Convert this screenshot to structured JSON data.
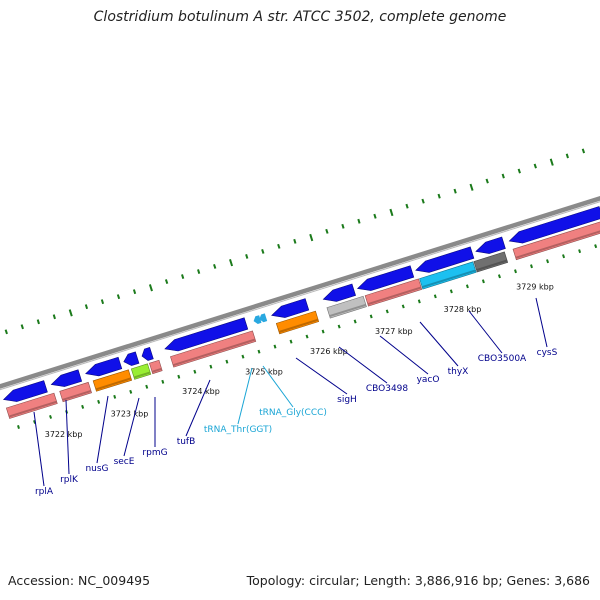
{
  "title": "Clostridium botulinum A str. ATCC 3502, complete genome",
  "footer": {
    "accession": "Accession: NC_009495",
    "stats": "Topology: circular; Length: 3,886,916 bp; Genes: 3,686"
  },
  "colors": {
    "backbone": "#8a8a8a",
    "cds_forward": "#1010e8",
    "cds_reverse_rna": "#f08080",
    "orange_gene": "#ff8c00",
    "green_gene": "#99ee33",
    "cyan_gene": "#1cc0f0",
    "trna": "#29a8e0",
    "gray_gene": "#c0c0c0",
    "darkgray_gene": "#707070",
    "steel_gene": "#4682b4",
    "gene_label": "#00008b",
    "trna_label": "#1aa5d5",
    "tick": "#1b7a1b"
  },
  "kbp_ticks": [
    {
      "label": "3722 kbp"
    },
    {
      "label": "3723 kbp"
    },
    {
      "label": "3724 kbp"
    },
    {
      "label": "3725 kbp"
    },
    {
      "label": "3726 kbp"
    },
    {
      "label": "3727 kbp"
    },
    {
      "label": "3728 kbp"
    },
    {
      "label": "3729 kbp"
    }
  ],
  "gene_labels": [
    {
      "name": "rplA",
      "kind": "cds"
    },
    {
      "name": "rplK",
      "kind": "cds"
    },
    {
      "name": "nusG",
      "kind": "cds"
    },
    {
      "name": "secE",
      "kind": "cds"
    },
    {
      "name": "rpmG",
      "kind": "cds"
    },
    {
      "name": "tufB",
      "kind": "cds"
    },
    {
      "name": "tRNA_Thr(GGT)",
      "kind": "trna"
    },
    {
      "name": "tRNA_Gly(CCC)",
      "kind": "trna"
    },
    {
      "name": "sigH",
      "kind": "cds"
    },
    {
      "name": "CBO3498",
      "kind": "cds"
    },
    {
      "name": "yacO",
      "kind": "cds"
    },
    {
      "name": "thyX",
      "kind": "cds"
    },
    {
      "name": "CBO3500A",
      "kind": "cds"
    },
    {
      "name": "cysS",
      "kind": "cds"
    }
  ]
}
